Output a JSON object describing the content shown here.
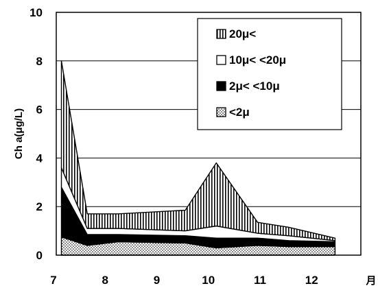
{
  "chart_data": {
    "type": "area",
    "stacked": true,
    "xlabel": "月",
    "ylabel": "Ch a(μg/L)",
    "x_ticks": [
      "7",
      "8",
      "9",
      "10",
      "11",
      "12"
    ],
    "xlim": [
      7,
      12.9
    ],
    "ylim": [
      0,
      10
    ],
    "y_ticks": [
      0,
      2,
      4,
      6,
      8,
      10
    ],
    "grid": "horizontal",
    "legend_position": "top-right",
    "x": [
      7.1,
      7.6,
      8.2,
      9.5,
      10.1,
      10.9,
      11.5,
      12.4
    ],
    "series": [
      {
        "name": "<2μ",
        "pattern": "dots",
        "values": [
          0.75,
          0.4,
          0.55,
          0.5,
          0.3,
          0.4,
          0.35,
          0.35
        ]
      },
      {
        "name": "2μ< <10μ",
        "pattern": "solid",
        "values": [
          2.05,
          0.45,
          0.3,
          0.3,
          0.4,
          0.3,
          0.25,
          0.2
        ]
      },
      {
        "name": "10μ< <20μ",
        "pattern": "white",
        "values": [
          0.8,
          0.25,
          0.25,
          0.2,
          0.5,
          0.2,
          0.2,
          0.05
        ]
      },
      {
        "name": "20μ<",
        "pattern": "vertical-lines",
        "values": [
          4.4,
          0.6,
          0.6,
          0.85,
          2.6,
          0.45,
          0.35,
          0.1
        ]
      }
    ]
  }
}
